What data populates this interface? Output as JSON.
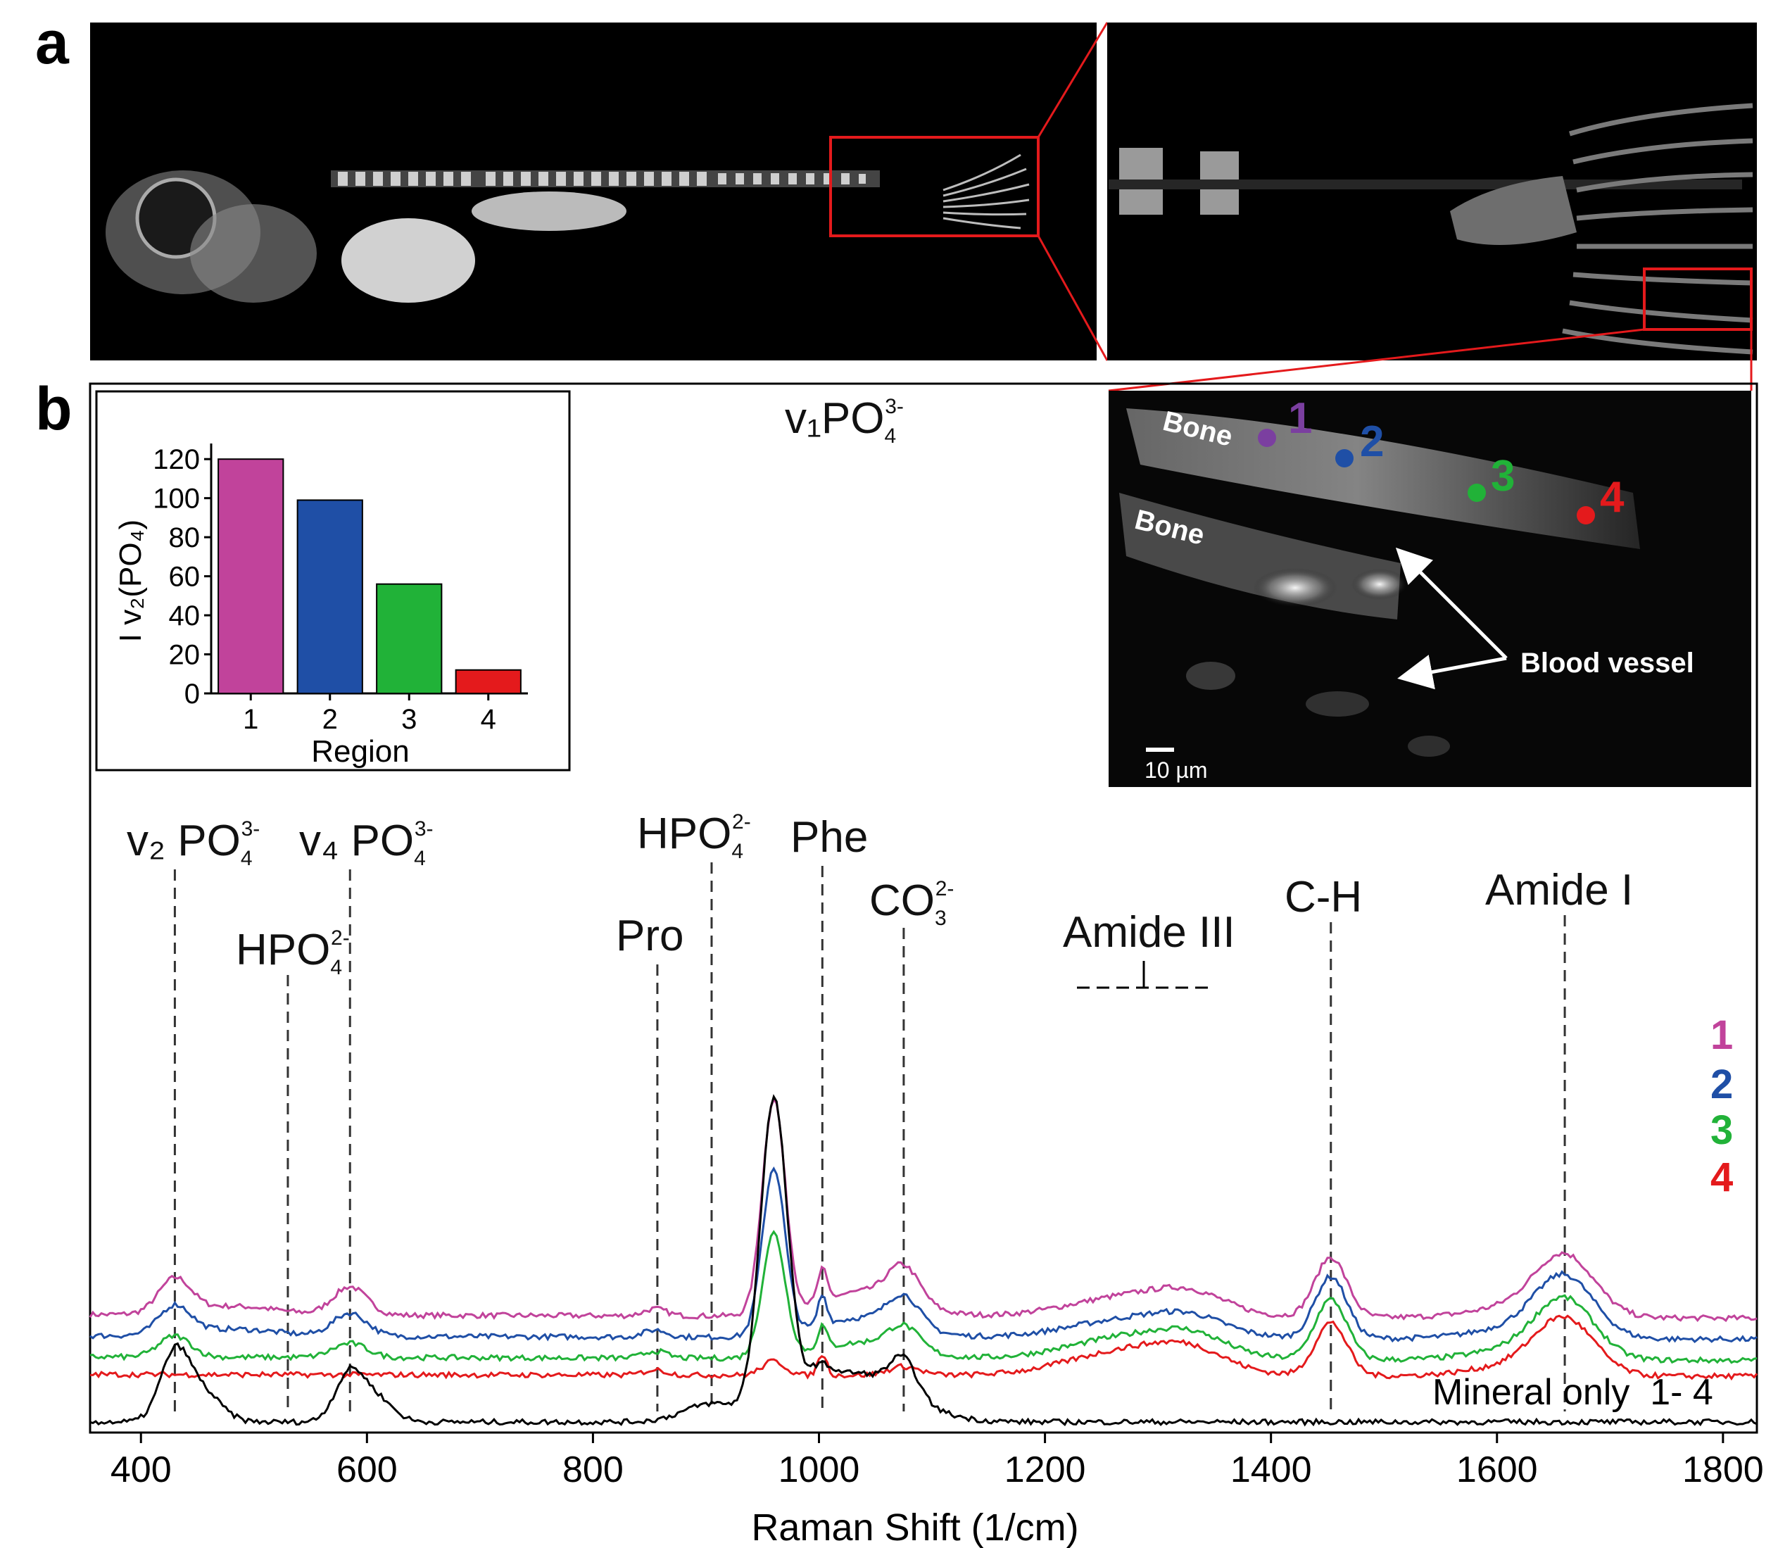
{
  "figure": {
    "panel_a_label": "a",
    "panel_b_label": "b"
  },
  "micrograph": {
    "bone_label_1": "Bone",
    "bone_label_2": "Bone",
    "vessel_label": "Blood vessel",
    "scale_bar": "10 µm",
    "region_labels": [
      "1",
      "2",
      "3",
      "4"
    ],
    "region_colors": [
      "#7b3fa0",
      "#1f4fa6",
      "#21b238",
      "#e41a1c"
    ]
  },
  "peak_labels": {
    "v2": {
      "text": "v₂ PO",
      "sub": "4",
      "sup": "3-"
    },
    "hpo4_left": {
      "text": "HPO",
      "sub": "4",
      "sup": "2-"
    },
    "v4": {
      "text": "v₄ PO",
      "sub": "4",
      "sup": "3-"
    },
    "pro": {
      "text": "Pro"
    },
    "hpo4_right": {
      "text": "HPO",
      "sub": "4",
      "sup": "2-"
    },
    "v1": {
      "text": "v₁PO",
      "sub": "4",
      "sup": "3-"
    },
    "phe": {
      "text": "Phe"
    },
    "co3": {
      "text": "CO",
      "sub": "3",
      "sup": "2-"
    },
    "amide3": {
      "text": "Amide III"
    },
    "ch": {
      "text": "C-H"
    },
    "amide1": {
      "text": "Amide I"
    }
  },
  "trace_labels": {
    "t1": "1",
    "t2": "2",
    "t3": "3",
    "t4": "4",
    "mineral": "Mineral only  1- 4"
  },
  "chart_data": [
    {
      "type": "bar",
      "title": "",
      "xlabel": "Region",
      "ylabel": "I v₂(PO₄)",
      "categories": [
        "1",
        "2",
        "3",
        "4"
      ],
      "values": [
        120,
        99,
        56,
        12
      ],
      "colors": [
        "#c1439b",
        "#1f4fa6",
        "#21b238",
        "#e41a1c"
      ],
      "ylim": [
        0,
        128
      ],
      "yticks": [
        0,
        20,
        40,
        60,
        80,
        100,
        120
      ],
      "ytick_labels": [
        "0",
        "20",
        "40",
        "60",
        "80",
        "100",
        "120"
      ]
    },
    {
      "type": "line",
      "title": "",
      "xlabel": "Raman Shift (1/cm)",
      "ylabel": "",
      "xlim": [
        355,
        1830
      ],
      "xticks": [
        400,
        600,
        800,
        1000,
        1200,
        1400,
        1600,
        1800
      ],
      "xtick_labels": [
        "400",
        "600",
        "800",
        "1000",
        "1200",
        "1400",
        "1600",
        "1800"
      ],
      "reference_lines": [
        430,
        530,
        585,
        857,
        905,
        1003,
        1075,
        1453,
        1660
      ],
      "series": [
        {
          "name": "1",
          "color": "#c1439b",
          "baseline": 0.62,
          "start": 0.61,
          "end": 0.59,
          "peaks": [
            [
              430,
              0.19,
              14
            ],
            [
              480,
              0.05,
              40
            ],
            [
              585,
              0.16,
              15
            ],
            [
              855,
              0.04,
              10
            ],
            [
              960,
              1.22,
              10
            ],
            [
              1003,
              0.18,
              4
            ],
            [
              1075,
              0.2,
              14
            ],
            [
              1040,
              0.14,
              40
            ],
            [
              1280,
              0.12,
              55
            ],
            [
              1330,
              0.08,
              30
            ],
            [
              1453,
              0.34,
              14
            ],
            [
              1660,
              0.33,
              26
            ],
            [
              1620,
              0.06,
              40
            ]
          ]
        },
        {
          "name": "2",
          "color": "#1f4fa6",
          "baseline": 0.5,
          "start": 0.49,
          "end": 0.47,
          "peaks": [
            [
              430,
              0.16,
              14
            ],
            [
              480,
              0.04,
              40
            ],
            [
              585,
              0.13,
              15
            ],
            [
              855,
              0.04,
              10
            ],
            [
              960,
              0.95,
              10
            ],
            [
              1003,
              0.17,
              4
            ],
            [
              1075,
              0.17,
              14
            ],
            [
              1040,
              0.11,
              40
            ],
            [
              1280,
              0.11,
              55
            ],
            [
              1330,
              0.07,
              30
            ],
            [
              1453,
              0.35,
              14
            ],
            [
              1660,
              0.33,
              26
            ],
            [
              1620,
              0.06,
              40
            ]
          ]
        },
        {
          "name": "3",
          "color": "#21b238",
          "baseline": 0.38,
          "start": 0.37,
          "end": 0.35,
          "peaks": [
            [
              430,
              0.12,
              14
            ],
            [
              585,
              0.08,
              15
            ],
            [
              855,
              0.04,
              10
            ],
            [
              960,
              0.7,
              10
            ],
            [
              1003,
              0.13,
              4
            ],
            [
              1075,
              0.13,
              14
            ],
            [
              1040,
              0.09,
              40
            ],
            [
              1280,
              0.13,
              55
            ],
            [
              1330,
              0.08,
              30
            ],
            [
              1453,
              0.34,
              14
            ],
            [
              1660,
              0.32,
              26
            ],
            [
              1620,
              0.06,
              40
            ]
          ]
        },
        {
          "name": "4",
          "color": "#e41a1c",
          "baseline": 0.28,
          "start": 0.27,
          "end": 0.26,
          "peaks": [
            [
              855,
              0.03,
              10
            ],
            [
              960,
              0.08,
              10
            ],
            [
              1003,
              0.12,
              4
            ],
            [
              1075,
              0.05,
              14
            ],
            [
              1280,
              0.15,
              55
            ],
            [
              1330,
              0.08,
              30
            ],
            [
              1453,
              0.3,
              14
            ],
            [
              1660,
              0.3,
              26
            ],
            [
              1620,
              0.06,
              40
            ]
          ]
        },
        {
          "name": "Mineral only 1-4",
          "color": "#000000",
          "baseline": 0.0,
          "start": 0.0,
          "end": 0.0,
          "peaks": [
            [
              430,
              0.38,
              13
            ],
            [
              455,
              0.16,
              16
            ],
            [
              585,
              0.28,
              13
            ],
            [
              610,
              0.12,
              14
            ],
            [
              905,
              0.1,
              25
            ],
            [
              960,
              1.75,
              12
            ],
            [
              1030,
              0.28,
              45
            ],
            [
              1075,
              0.2,
              12
            ],
            [
              1000,
              0.1,
              10
            ]
          ]
        }
      ]
    }
  ]
}
